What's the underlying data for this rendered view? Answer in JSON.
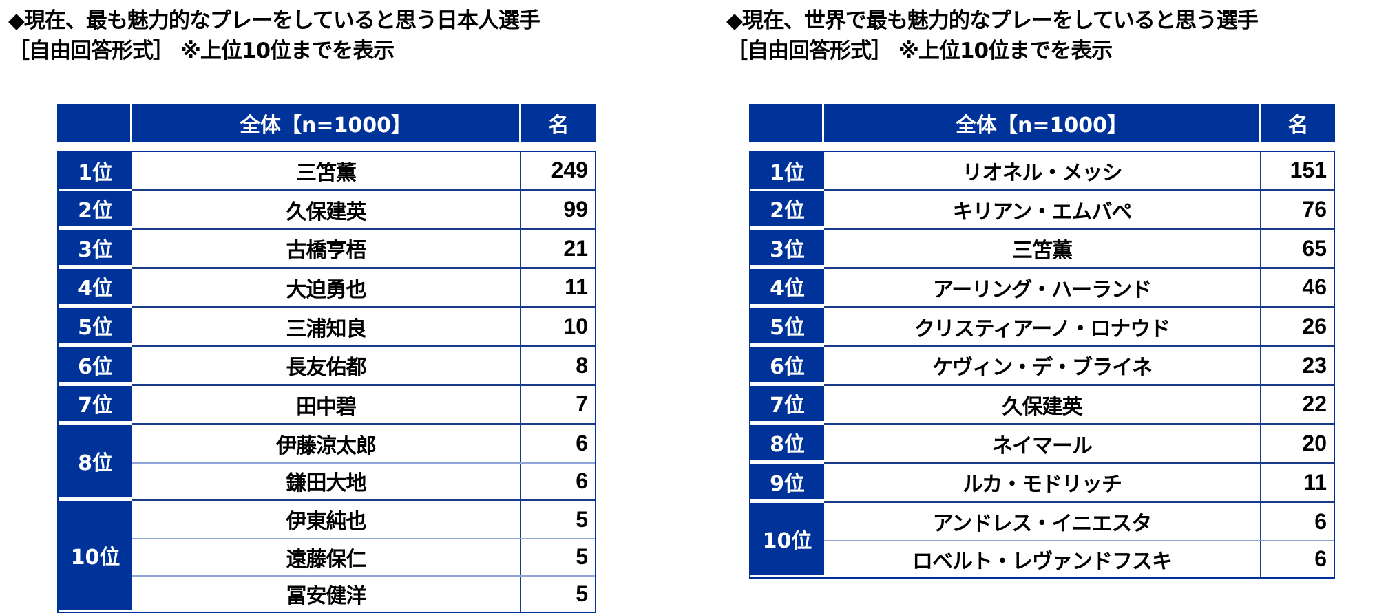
{
  "left": {
    "title_line1": "◆現在、最も魅力的なプレーをしていると思う日本人選手",
    "title_line2": "［自由回答形式］ ※上位10位までを表示",
    "header": {
      "rank": "",
      "name": "全体【n=1000】",
      "count": "名"
    },
    "groups": [
      {
        "rank": "1位",
        "rows": [
          {
            "name": "三笘薫",
            "count": "249"
          }
        ]
      },
      {
        "rank": "2位",
        "rows": [
          {
            "name": "久保建英",
            "count": "99"
          }
        ]
      },
      {
        "rank": "3位",
        "rows": [
          {
            "name": "古橋亨梧",
            "count": "21"
          }
        ]
      },
      {
        "rank": "4位",
        "rows": [
          {
            "name": "大迫勇也",
            "count": "11"
          }
        ]
      },
      {
        "rank": "5位",
        "rows": [
          {
            "name": "三浦知良",
            "count": "10"
          }
        ]
      },
      {
        "rank": "6位",
        "rows": [
          {
            "name": "長友佑都",
            "count": "8"
          }
        ]
      },
      {
        "rank": "7位",
        "rows": [
          {
            "name": "田中碧",
            "count": "7"
          }
        ]
      },
      {
        "rank": "8位",
        "rows": [
          {
            "name": "伊藤涼太郎",
            "count": "6"
          },
          {
            "name": "鎌田大地",
            "count": "6"
          }
        ]
      },
      {
        "rank": "10位",
        "rows": [
          {
            "name": "伊東純也",
            "count": "5"
          },
          {
            "name": "遠藤保仁",
            "count": "5"
          },
          {
            "name": "冨安健洋",
            "count": "5"
          }
        ]
      }
    ]
  },
  "right": {
    "title_line1": "◆現在、世界で最も魅力的なプレーをしていると思う選手",
    "title_line2": "［自由回答形式］ ※上位10位までを表示",
    "header": {
      "rank": "",
      "name": "全体【n=1000】",
      "count": "名"
    },
    "groups": [
      {
        "rank": "1位",
        "rows": [
          {
            "name": "リオネル・メッシ",
            "count": "151"
          }
        ]
      },
      {
        "rank": "2位",
        "rows": [
          {
            "name": "キリアン・エムバペ",
            "count": "76"
          }
        ]
      },
      {
        "rank": "3位",
        "rows": [
          {
            "name": "三笘薫",
            "count": "65"
          }
        ]
      },
      {
        "rank": "4位",
        "rows": [
          {
            "name": "アーリング・ハーランド",
            "count": "46"
          }
        ]
      },
      {
        "rank": "5位",
        "rows": [
          {
            "name": "クリスティアーノ・ロナウド",
            "count": "26"
          }
        ]
      },
      {
        "rank": "6位",
        "rows": [
          {
            "name": "ケヴィン・デ・ブライネ",
            "count": "23"
          }
        ]
      },
      {
        "rank": "7位",
        "rows": [
          {
            "name": "久保建英",
            "count": "22"
          }
        ]
      },
      {
        "rank": "8位",
        "rows": [
          {
            "name": "ネイマール",
            "count": "20"
          }
        ]
      },
      {
        "rank": "9位",
        "rows": [
          {
            "name": "ルカ・モドリッチ",
            "count": "11"
          }
        ]
      },
      {
        "rank": "10位",
        "rows": [
          {
            "name": "アンドレス・イニエスタ",
            "count": "6"
          },
          {
            "name": "ロベルト・レヴァンドフスキ",
            "count": "6"
          }
        ]
      }
    ]
  },
  "colors": {
    "header_bg": "#003399",
    "rank_bg": "#003399",
    "text": "#000000"
  }
}
